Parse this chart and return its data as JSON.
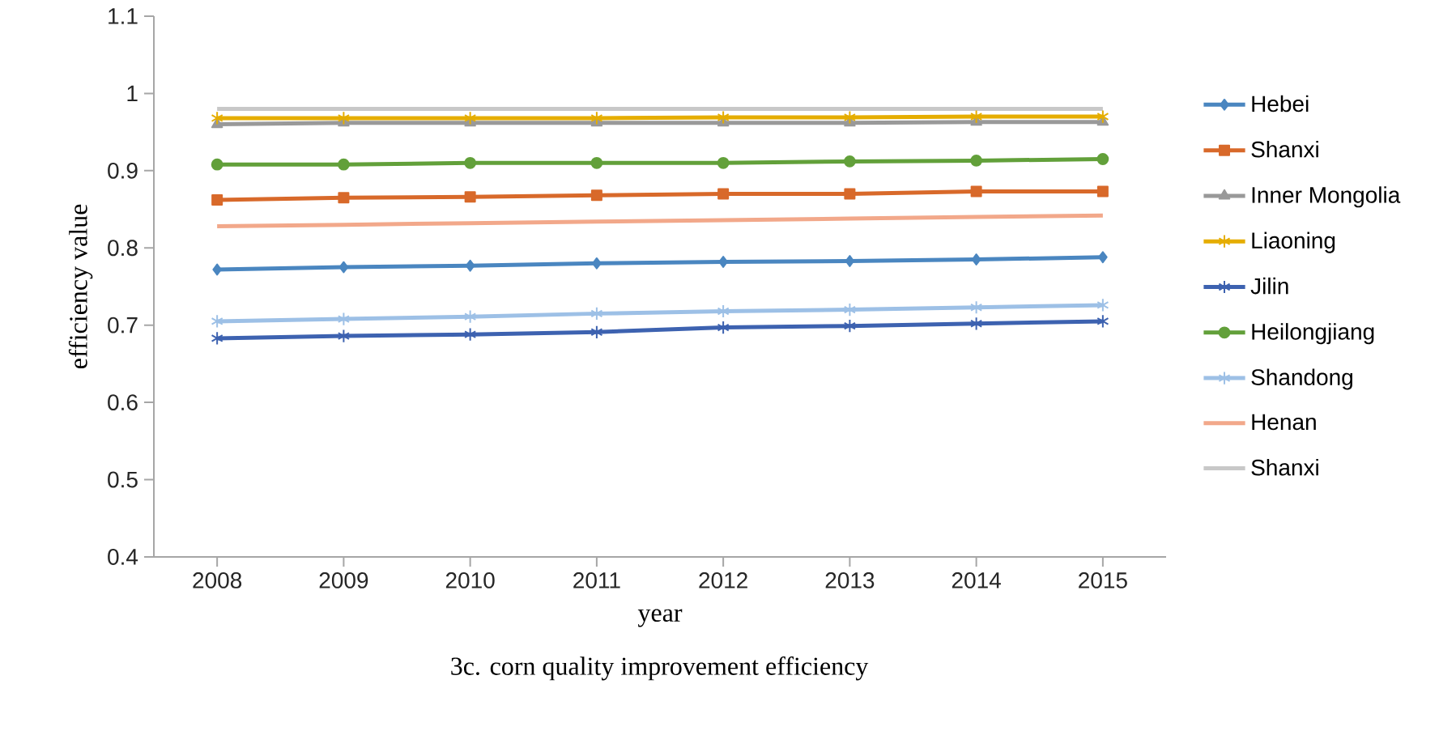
{
  "chart_data": {
    "type": "line",
    "xlabel": "year",
    "ylabel": "efficiency value",
    "annotations": [
      "3c. corn quality improvement efficiency"
    ],
    "categories": [
      "2008",
      "2009",
      "2010",
      "2011",
      "2012",
      "2013",
      "2014",
      "2015"
    ],
    "ylim": [
      0.4,
      1.1
    ],
    "yticks": [
      0.4,
      0.5,
      0.6,
      0.7,
      0.8,
      0.9,
      1,
      1.1
    ],
    "legend": "right",
    "grid": false,
    "series": [
      {
        "name": "Hebei",
        "color": "#4a86c0",
        "marker": "diamond",
        "values": [
          0.772,
          0.775,
          0.777,
          0.78,
          0.782,
          0.783,
          0.785,
          0.788
        ]
      },
      {
        "name": "Shanxi",
        "color": "#d8692a",
        "marker": "square",
        "values": [
          0.862,
          0.865,
          0.866,
          0.868,
          0.87,
          0.87,
          0.873,
          0.873
        ]
      },
      {
        "name": "Inner Mongolia",
        "color": "#999999",
        "marker": "triangle",
        "values": [
          0.96,
          0.962,
          0.962,
          0.962,
          0.962,
          0.962,
          0.963,
          0.963
        ]
      },
      {
        "name": "Liaoning",
        "color": "#e5ad00",
        "marker": "cross",
        "values": [
          0.968,
          0.968,
          0.968,
          0.968,
          0.969,
          0.969,
          0.97,
          0.97
        ]
      },
      {
        "name": "Jilin",
        "color": "#3d62b0",
        "marker": "cross",
        "values": [
          0.683,
          0.686,
          0.688,
          0.691,
          0.697,
          0.699,
          0.702,
          0.705
        ]
      },
      {
        "name": "Heilongjiang",
        "color": "#62a03a",
        "marker": "circle",
        "values": [
          0.908,
          0.908,
          0.91,
          0.91,
          0.91,
          0.912,
          0.913,
          0.915
        ]
      },
      {
        "name": "Shandong",
        "color": "#9dc0e6",
        "marker": "cross",
        "values": [
          0.705,
          0.708,
          0.711,
          0.715,
          0.718,
          0.72,
          0.723,
          0.726
        ]
      },
      {
        "name": "Henan",
        "color": "#f2a88a",
        "marker": "none",
        "values": [
          0.828,
          0.83,
          0.832,
          0.834,
          0.836,
          0.838,
          0.84,
          0.842
        ]
      },
      {
        "name": "Shanxi",
        "color": "#c8c8c8",
        "marker": "none",
        "values": [
          0.98,
          0.98,
          0.98,
          0.98,
          0.98,
          0.98,
          0.98,
          0.98
        ]
      }
    ]
  }
}
